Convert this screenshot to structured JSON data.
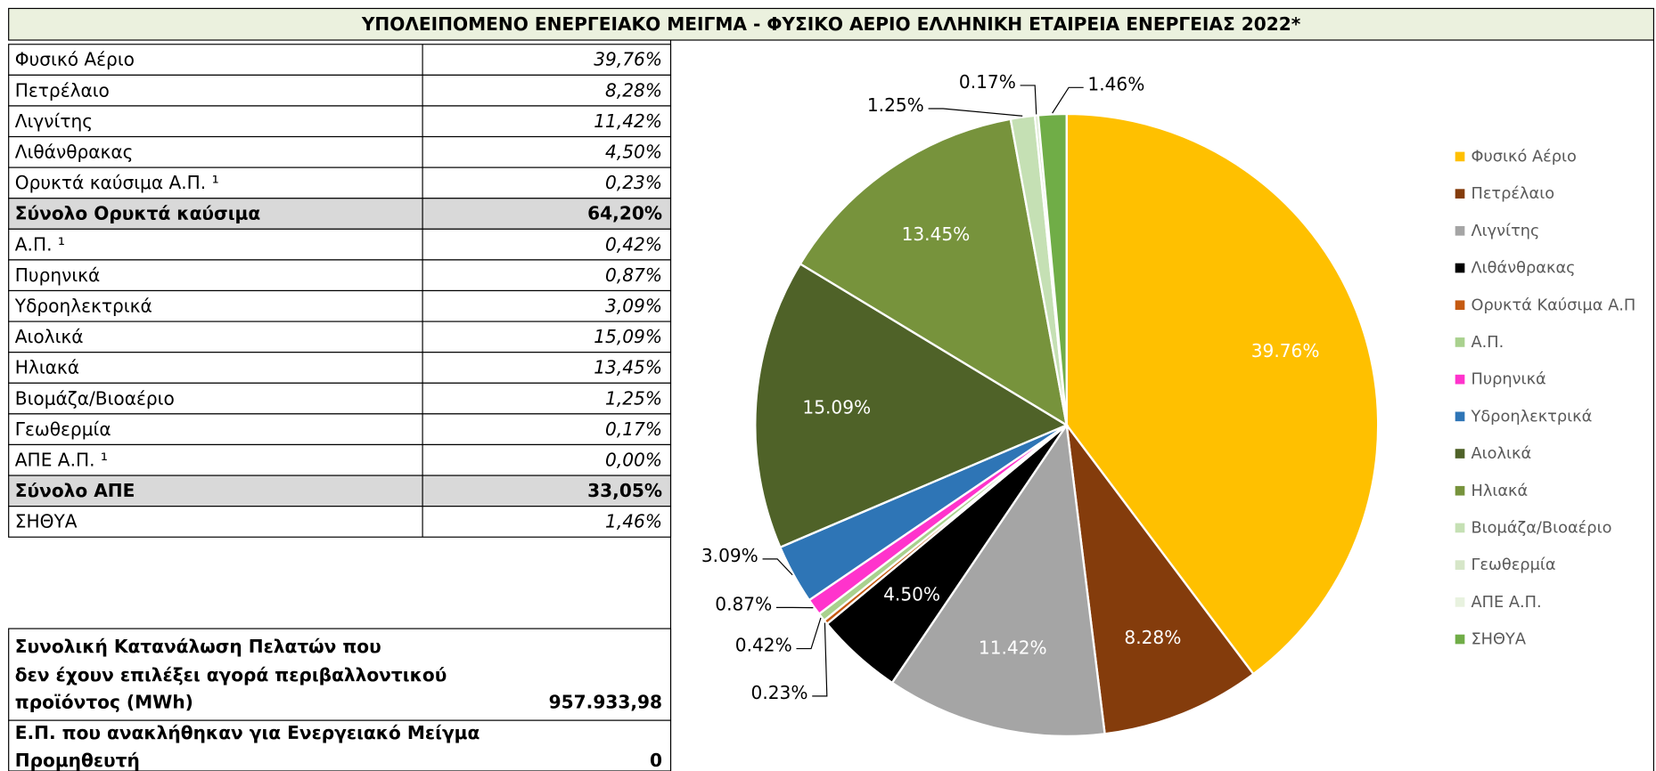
{
  "title": "ΥΠΟΛΕΙΠΟΜΕΝΟ ΕΝΕΡΓΕΙΑΚΟ ΜΕΙΓΜΑ  -  ΦΥΣΙΚΟ ΑΕΡΙΟ ΕΛΛΗΝΙΚΗ ΕΤΑΙΡΕΙΑ ΕΝΕΡΓΕΙΑΣ  2022*",
  "table": {
    "rows": [
      {
        "label": "Φυσικό Αέριο",
        "value": "39,76%"
      },
      {
        "label": "Πετρέλαιο",
        "value": "8,28%"
      },
      {
        "label": "Λιγνίτης",
        "value": "11,42%"
      },
      {
        "label": "Λιθάνθρακας",
        "value": "4,50%"
      },
      {
        "label": "Ορυκτά καύσιμα Α.Π. ¹",
        "value": "0,23%"
      },
      {
        "label": "Σύνολο Ορυκτά καύσιμα",
        "value": "64,20%",
        "total": true
      },
      {
        "label": "Α.Π. ¹",
        "value": "0,42%"
      },
      {
        "label": "Πυρηνικά",
        "value": "0,87%"
      },
      {
        "label": "Υδροηλεκτρικά",
        "value": "3,09%"
      },
      {
        "label": "Αιολικά",
        "value": "15,09%"
      },
      {
        "label": "Ηλιακά",
        "value": "13,45%"
      },
      {
        "label": "Βιομάζα/Βιοαέριο",
        "value": "1,25%"
      },
      {
        "label": "Γεωθερμία",
        "value": "0,17%"
      },
      {
        "label": "ΑΠΕ Α.Π. ¹",
        "value": "0,00%"
      },
      {
        "label": "Σύνολο ΑΠΕ",
        "value": "33,05%",
        "total": true
      },
      {
        "label": "ΣΗΘΥΑ",
        "value": "1,46%"
      }
    ]
  },
  "summary": [
    {
      "lines": [
        "Συνολική Κατανάλωση Πελατών που",
        "δεν έχουν επιλέξει αγορά περιβαλλοντικού",
        "προϊόντος (MWh)"
      ],
      "value": "957.933,98"
    },
    {
      "lines": [
        "Ε.Π. που ανακλήθηκαν για Ενεργειακό Μείγμα",
        "Προμηθευτή"
      ],
      "value": "0"
    }
  ],
  "chart_data": {
    "type": "pie",
    "categories": [
      "Φυσικό Αέριο",
      "Πετρέλαιο",
      "Λιγνίτης",
      "Λιθάνθρακας",
      "Ορυκτά Καύσιμα Α.Π",
      "Α.Π.",
      "Πυρηνικά",
      "Υδροηλεκτρικά",
      "Αιολικά",
      "Ηλιακά",
      "Βιομάζα/Βιοαέριο",
      "Γεωθερμία",
      "ΑΠΕ Α.Π.",
      "ΣΗΘΥΑ"
    ],
    "values": [
      39.76,
      8.28,
      11.42,
      4.5,
      0.23,
      0.42,
      0.87,
      3.09,
      15.09,
      13.45,
      1.25,
      0.17,
      0,
      1.46
    ],
    "value_labels": [
      "39.76%",
      "8.28%",
      "11.42%",
      "4.50%",
      "0.23%",
      "0.42%",
      "0.87%",
      "3.09%",
      "15.09%",
      "13.45%",
      "1.25%",
      "0.17%",
      null,
      "1.46%"
    ],
    "colors": [
      "#FFC000",
      "#843C0C",
      "#A5A5A5",
      "#000000",
      "#C55A11",
      "#A9D18E",
      "#FF33CC",
      "#2E75B6",
      "#4F6228",
      "#77933C",
      "#C5E0B4",
      "#D6E6C8",
      "#E8F2DF",
      "#70AD47"
    ],
    "legend": "right"
  }
}
